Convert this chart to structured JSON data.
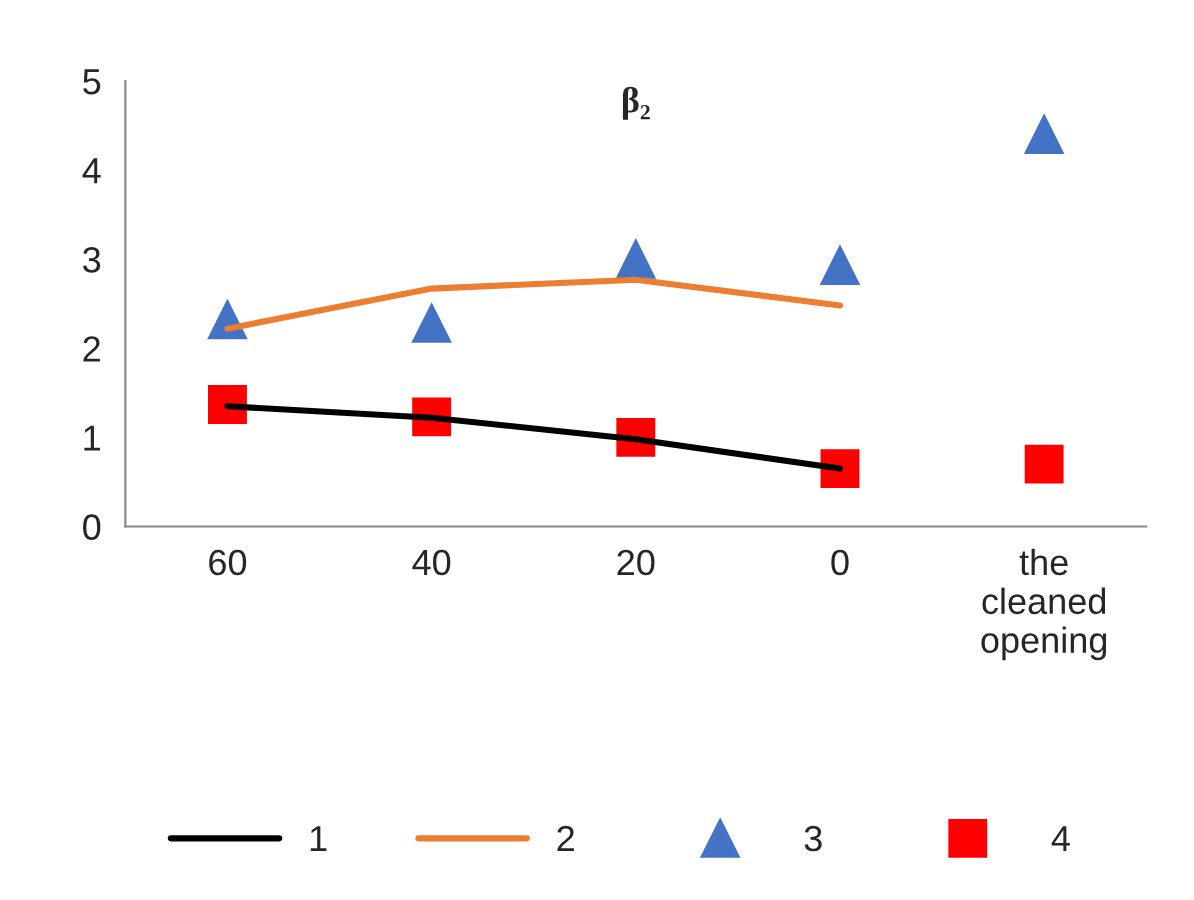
{
  "chart_data": {
    "type": "line",
    "title": "β₂",
    "categories": [
      "60",
      "40",
      "20",
      "0",
      "the cleaned opening"
    ],
    "ylim": [
      0,
      5
    ],
    "yticks": [
      0,
      1,
      2,
      3,
      4,
      5
    ],
    "grid": false,
    "legend": "bottom",
    "series": [
      {
        "name": "1",
        "color": "#000000",
        "marker": "none",
        "values": [
          1.35,
          1.22,
          0.98,
          0.65,
          null
        ]
      },
      {
        "name": "2",
        "color": "#ed7d31",
        "marker": "none",
        "values": [
          2.22,
          2.67,
          2.77,
          2.48,
          null
        ]
      },
      {
        "name": "3",
        "type": "scatter",
        "color": "#4472c4",
        "marker": "triangle",
        "values": [
          2.32,
          2.28,
          3.0,
          2.93,
          4.4
        ]
      },
      {
        "name": "4",
        "type": "scatter",
        "color": "#ff0000",
        "marker": "square",
        "values": [
          1.37,
          1.23,
          1.0,
          0.65,
          0.7
        ]
      }
    ]
  }
}
